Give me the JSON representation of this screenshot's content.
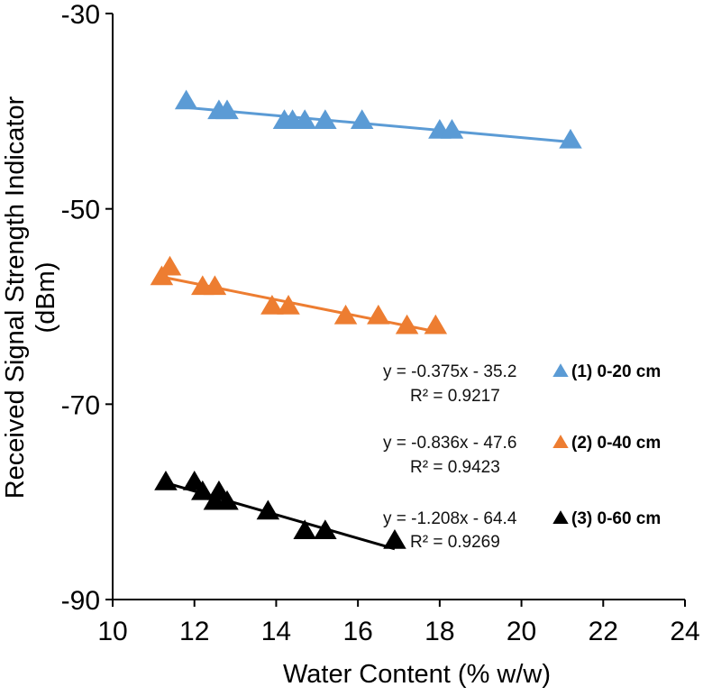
{
  "chart_data": {
    "type": "scatter",
    "title": "",
    "xlabel": "Water Content (% w/w)",
    "ylabel_line1": "Received Signal Strength Indicator",
    "ylabel_line2": "(dBm)",
    "xlim": [
      10,
      24
    ],
    "ylim": [
      -90,
      -30
    ],
    "x_ticks": [
      "10",
      "12",
      "14",
      "16",
      "18",
      "20",
      "22",
      "24"
    ],
    "y_ticks": [
      "-30",
      "-50",
      "-70",
      "-90"
    ],
    "grid": false,
    "legend_position": "right",
    "series": [
      {
        "name": "(1) 0-20 cm",
        "color": "#5b9bd5",
        "marker": "triangle",
        "x": [
          11.8,
          12.6,
          12.8,
          14.2,
          14.4,
          14.7,
          15.2,
          16.1,
          18.0,
          18.3,
          21.2
        ],
        "y": [
          -39,
          -40,
          -40,
          -41,
          -41,
          -41,
          -41,
          -41,
          -42,
          -42,
          -43
        ],
        "trendline": {
          "slope": -0.375,
          "intercept": -35.2,
          "x_range": [
            11.8,
            21.2
          ]
        },
        "equation": "y = -0.375x - 35.2",
        "r2": "R² = 0.9217"
      },
      {
        "name": "(2) 0-40 cm",
        "color": "#ed7d31",
        "marker": "triangle",
        "x": [
          11.2,
          11.4,
          12.2,
          12.5,
          13.9,
          14.3,
          15.7,
          16.5,
          17.2,
          17.9
        ],
        "y": [
          -57,
          -56,
          -58,
          -58,
          -60,
          -60,
          -61,
          -61,
          -62,
          -62
        ],
        "trendline": {
          "slope": -0.836,
          "intercept": -47.6,
          "x_range": [
            11.2,
            17.9
          ]
        },
        "equation": "y = -0.836x - 47.6",
        "r2": "R² = 0.9423"
      },
      {
        "name": "(3) 0-60 cm",
        "color": "#000000",
        "marker": "triangle",
        "x": [
          11.3,
          12.0,
          12.2,
          12.5,
          12.6,
          12.8,
          13.8,
          14.7,
          15.2,
          16.9
        ],
        "y": [
          -78,
          -78,
          -79,
          -80,
          -79,
          -80,
          -81,
          -83,
          -83,
          -84
        ],
        "trendline": {
          "slope": -1.208,
          "intercept": -64.4,
          "x_range": [
            11.3,
            16.9
          ]
        },
        "equation": "y = -1.208x - 64.4",
        "r2": "R² = 0.9269"
      }
    ]
  }
}
